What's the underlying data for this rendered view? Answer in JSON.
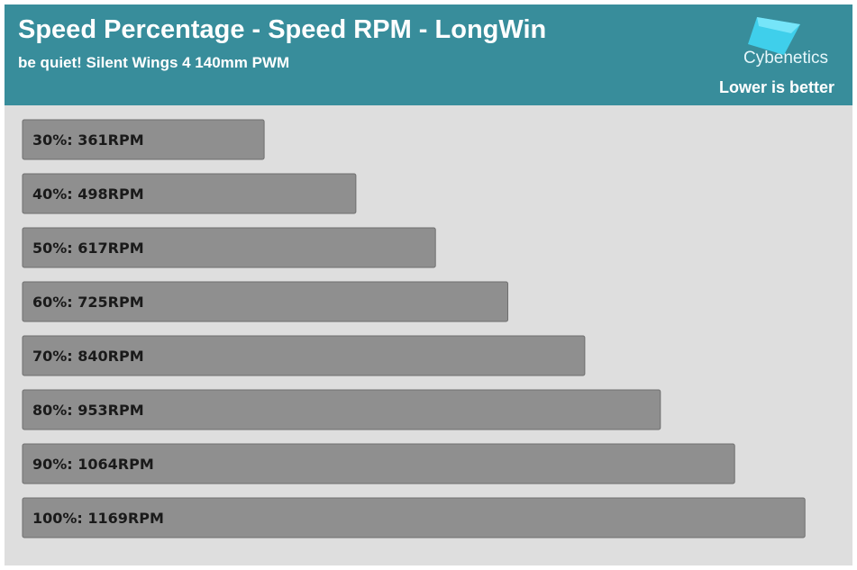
{
  "header": {
    "title": "Speed Percentage - Speed RPM - LongWin",
    "subtitle": "be quiet! Silent Wings 4 140mm PWM",
    "brand": "Cybenetics",
    "note": "Lower is better"
  },
  "colors": {
    "header_bg": "#388d9b",
    "plot_bg": "#dedede",
    "bar_fill": "#8f8f8f",
    "bar_stroke": "#6f6f6f",
    "label_text": "#1a1a1a",
    "logo_accent": "#3fd3ef"
  },
  "chart_data": {
    "type": "bar",
    "orientation": "horizontal",
    "categories": [
      "30%",
      "40%",
      "50%",
      "60%",
      "70%",
      "80%",
      "90%",
      "100%"
    ],
    "values": [
      361,
      498,
      617,
      725,
      840,
      953,
      1064,
      1169
    ],
    "unit": "RPM",
    "labels": [
      "30%: 361RPM",
      "40%: 498RPM",
      "50%: 617RPM",
      "60%: 725RPM",
      "70%: 840RPM",
      "80%: 953RPM",
      "90%: 1064RPM",
      "100%: 1169RPM"
    ],
    "title": "Speed Percentage - Speed RPM - LongWin",
    "subtitle": "be quiet! Silent Wings 4 140mm PWM",
    "grid": false,
    "axes_visible": false
  }
}
